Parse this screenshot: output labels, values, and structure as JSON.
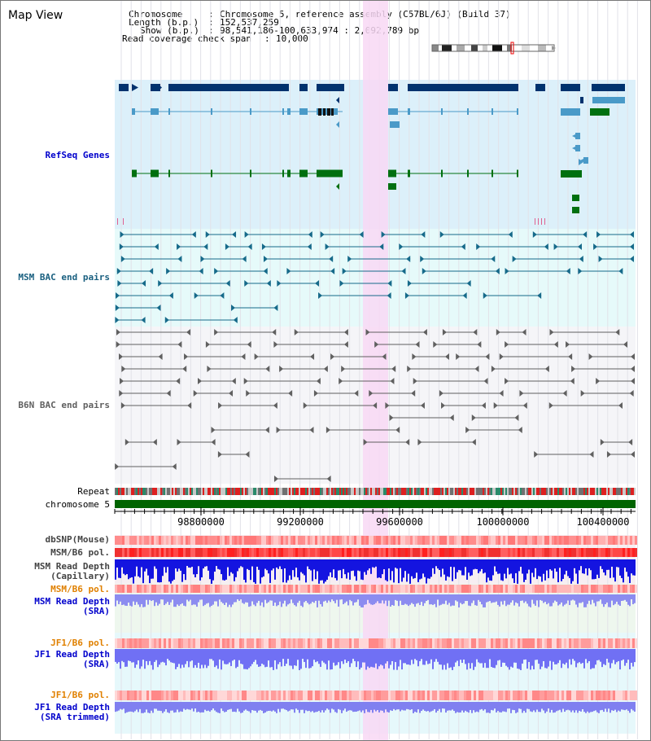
{
  "app": {
    "title": "Map View"
  },
  "header": {
    "chromosome_label": "Chromosome",
    "chromosome_value": "Chromosome 5, reference assembly (C57BL/6J) (Build 37)",
    "length_label": "Length (b.p.)",
    "length_value": "152,537,259",
    "show_label": "Show (b.p.)",
    "show_value": "98,541,186-100,633,974 : 2,092,789 bp",
    "coverage_label": "Read coverage check span",
    "coverage_value": "10,000"
  },
  "tracks": {
    "refseq_genes": "RefSeq Genes",
    "msm_bac": "MSM BAC end pairs",
    "b6n_bac": "B6N BAC end pairs",
    "repeat": "Repeat",
    "chromosome": "chromosome 5",
    "dbsnp": "dbSNP(Mouse)",
    "msm_b6_pol": "MSM/B6 pol.",
    "msm_depth_cap_1": "MSM Read Depth",
    "msm_depth_cap_2": "(Capillary)",
    "msm_b6_pol_sra": "MSM/B6 pol.",
    "msm_depth_sra_1": "MSM Read Depth",
    "msm_depth_sra_2": "(SRA)",
    "jf1_b6_pol": "JF1/B6 pol.",
    "jf1_depth_1": "JF1 Read Depth",
    "jf1_depth_2": "(SRA)",
    "jf1_b6_pol_trim": "JF1/B6 pol.",
    "jf1_trim_1": "JF1 Read Depth",
    "jf1_trim_2": "(SRA trimmed)"
  },
  "axis": {
    "ticks": [
      "98800000",
      "99200000",
      "99600000",
      "100000000",
      "100400000"
    ]
  },
  "colors": {
    "refseq_bg": "#dcf0fa",
    "msm_bg": "#e6fafa",
    "b6n_bg": "#f5f5f8",
    "highlight": "#f8d8f4",
    "label_blue": "#0000cc",
    "label_teal": "#1a6080",
    "label_gray": "#606060",
    "label_orange": "#e08000",
    "chromosome_bar": "#006400"
  }
}
